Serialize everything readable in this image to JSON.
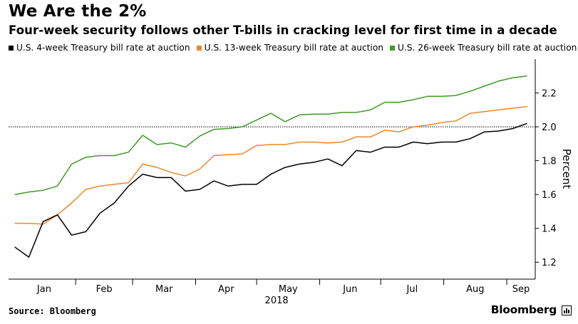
{
  "chart_data": {
    "type": "line",
    "title": "We Are the 2%",
    "subtitle": "Four-week security follows other T-bills in cracking level for first time in a decade",
    "ylabel": "Percent",
    "year_label": "2018",
    "ylim": [
      1.1,
      2.4
    ],
    "yticks": [
      1.2,
      1.4,
      1.6,
      1.8,
      2.0,
      2.2
    ],
    "ytick_labels": [
      "1.2",
      "1.4",
      "1.6",
      "1.8",
      "2.0",
      "2.2"
    ],
    "reference_line": 2.0,
    "grid": false,
    "legend_position": "top-left",
    "x_months": [
      "Jan",
      "Feb",
      "Mar",
      "Apr",
      "May",
      "Jun",
      "Jul",
      "Aug",
      "Sep"
    ],
    "x": [
      "2018-01-02",
      "2018-01-09",
      "2018-01-16",
      "2018-01-23",
      "2018-01-30",
      "2018-02-06",
      "2018-02-13",
      "2018-02-20",
      "2018-02-27",
      "2018-03-06",
      "2018-03-13",
      "2018-03-20",
      "2018-03-27",
      "2018-04-03",
      "2018-04-10",
      "2018-04-17",
      "2018-04-24",
      "2018-05-01",
      "2018-05-08",
      "2018-05-15",
      "2018-05-22",
      "2018-05-29",
      "2018-06-05",
      "2018-06-12",
      "2018-06-19",
      "2018-06-26",
      "2018-07-03",
      "2018-07-10",
      "2018-07-17",
      "2018-07-24",
      "2018-07-31",
      "2018-08-07",
      "2018-08-14",
      "2018-08-21",
      "2018-08-28",
      "2018-09-04",
      "2018-09-11"
    ],
    "series": [
      {
        "name": "U.S. 4-week Treasury bill rate at auction",
        "color": "#000000",
        "values": [
          1.29,
          1.23,
          1.44,
          1.48,
          1.36,
          1.38,
          1.49,
          1.55,
          1.65,
          1.72,
          1.7,
          1.7,
          1.62,
          1.63,
          1.68,
          1.65,
          1.66,
          1.66,
          1.72,
          1.76,
          1.78,
          1.79,
          1.81,
          1.77,
          1.86,
          1.85,
          1.88,
          1.88,
          1.91,
          1.9,
          1.91,
          1.91,
          1.93,
          1.97,
          1.975,
          1.99,
          2.02
        ]
      },
      {
        "name": "U.S. 13-week Treasury bill rate at auction",
        "color": "#e8892b",
        "values": [
          1.43,
          1.43,
          1.425,
          1.48,
          1.55,
          1.63,
          1.65,
          1.66,
          1.67,
          1.78,
          1.76,
          1.73,
          1.71,
          1.75,
          1.83,
          1.835,
          1.84,
          1.89,
          1.895,
          1.895,
          1.91,
          1.91,
          1.905,
          1.91,
          1.94,
          1.94,
          1.98,
          1.97,
          2.0,
          2.01,
          2.025,
          2.035,
          2.08,
          2.09,
          2.1,
          2.11,
          2.12
        ]
      },
      {
        "name": "U.S. 26-week Treasury bill rate at auction",
        "color": "#3d9b27",
        "values": [
          1.6,
          1.615,
          1.625,
          1.65,
          1.78,
          1.82,
          1.83,
          1.83,
          1.85,
          1.95,
          1.895,
          1.905,
          1.88,
          1.945,
          1.985,
          1.99,
          2.0,
          2.04,
          2.08,
          2.03,
          2.07,
          2.075,
          2.075,
          2.085,
          2.085,
          2.1,
          2.145,
          2.145,
          2.16,
          2.18,
          2.18,
          2.185,
          2.21,
          2.24,
          2.27,
          2.29,
          2.3
        ]
      }
    ]
  },
  "footer": {
    "source": "Source: Bloomberg",
    "brand": "Bloomberg"
  }
}
